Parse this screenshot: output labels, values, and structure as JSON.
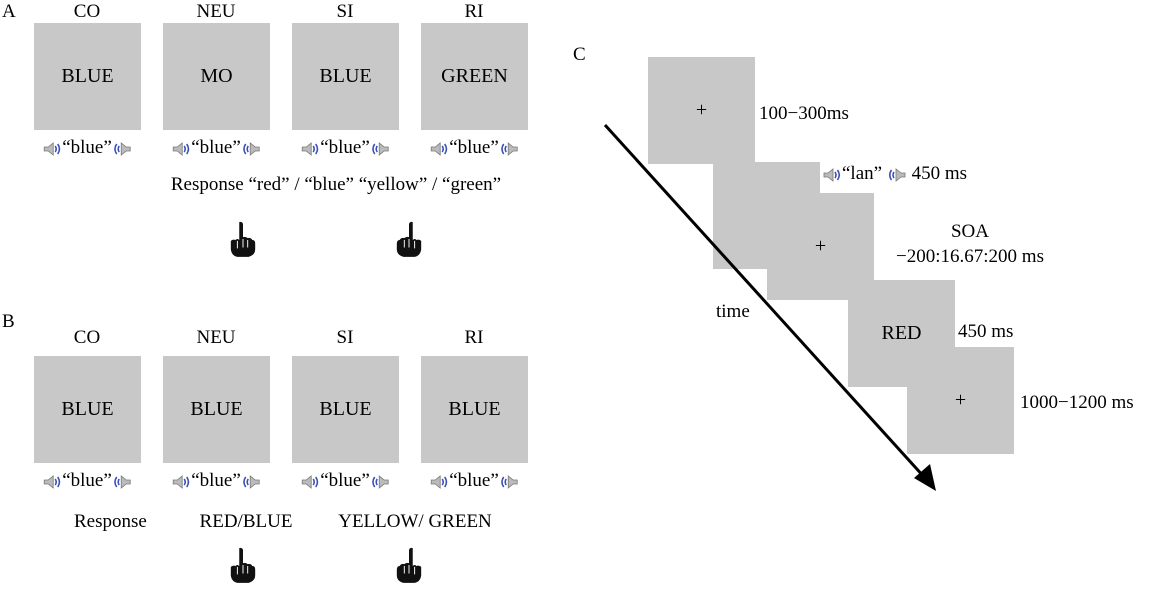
{
  "panel_a": {
    "letter": "A",
    "conditions": [
      "CO",
      "NEU",
      "SI",
      "RI"
    ],
    "words": [
      "BLUE",
      "MO",
      "BLUE",
      "GREEN"
    ],
    "audio": [
      "“blue”",
      "“blue”",
      "“blue”",
      "“blue”"
    ],
    "response": "Response “red” / “blue” “yellow” / “green”"
  },
  "panel_b": {
    "letter": "B",
    "conditions": [
      "CO",
      "NEU",
      "SI",
      "RI"
    ],
    "words": [
      "BLUE",
      "BLUE",
      "BLUE",
      "BLUE"
    ],
    "audio": [
      "“blue”",
      "“blue”",
      "“blue”",
      "“blue”"
    ],
    "response_label": "Response",
    "response_left": "RED/BLUE",
    "response_right": "YELLOW/ GREEN"
  },
  "panel_c": {
    "letter": "C",
    "fix1": "+",
    "fix1_time": "100−300ms",
    "audio": "“lan”",
    "audio_time": "450 ms",
    "fix2": "+",
    "soa_label": "SOA",
    "soa_value": "−200:16.67:200 ms",
    "word": "RED",
    "word_time": "450 ms",
    "fix3": "+",
    "fix3_time": "1000−1200 ms",
    "time_label": "time"
  },
  "colors": {
    "stimulus_bg": "#c8c8c8",
    "speaker_wave": "#3a4fb5"
  }
}
